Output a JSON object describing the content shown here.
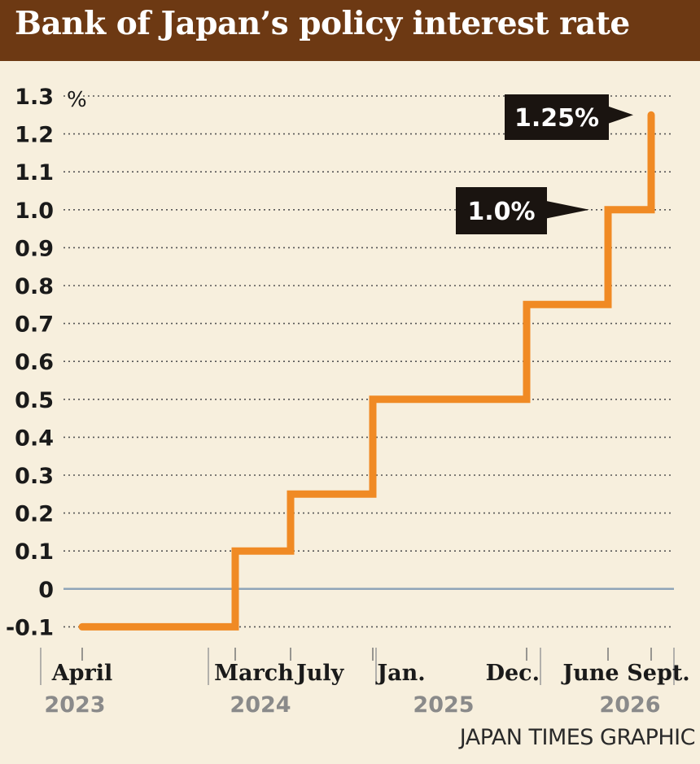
{
  "title": "Bank of Japan’s policy interest rate",
  "credit": "JAPAN TIMES GRAPHIC",
  "colors": {
    "title_bg": "#6d3913",
    "background": "#f7efdd",
    "line": "#f08a24",
    "zero_line": "#8fa4b8",
    "callout_bg": "#1a1410"
  },
  "chart_data": {
    "type": "line",
    "step": true,
    "unit": "%",
    "ylim": [
      -0.1,
      1.3
    ],
    "yticks": [
      "1.3",
      "1.2",
      "1.1",
      "1.0",
      "0.9",
      "0.8",
      "0.7",
      "0.6",
      "0.5",
      "0.4",
      "0.3",
      "0.2",
      "0.1",
      "0",
      "-0.1"
    ],
    "grid": "dotted horizontal",
    "points": [
      {
        "date": "2023-04",
        "value": -0.1
      },
      {
        "date": "2024-03",
        "value": 0.1
      },
      {
        "date": "2024-07",
        "value": 0.25
      },
      {
        "date": "2025-01",
        "value": 0.5
      },
      {
        "date": "2025-12",
        "value": 0.75
      },
      {
        "date": "2026-06",
        "value": 1.0
      },
      {
        "date": "2026-09",
        "value": 1.25
      }
    ],
    "x_labels": [
      {
        "date": "2023-04",
        "label": "April"
      },
      {
        "date": "2024-03",
        "label": "March"
      },
      {
        "date": "2024-07",
        "label": "July"
      },
      {
        "date": "2025-01",
        "label": "Jan."
      },
      {
        "date": "2025-12",
        "label": "Dec."
      },
      {
        "date": "2026-06",
        "label": "June"
      },
      {
        "date": "2026-09",
        "label": "Sept."
      }
    ],
    "years": [
      "2023",
      "2024",
      "2025",
      "2026"
    ],
    "annotations": [
      {
        "date": "2026-06",
        "value": 1.0,
        "text": "1.0%"
      },
      {
        "date": "2026-09",
        "value": 1.25,
        "text": "1.25%"
      }
    ]
  }
}
